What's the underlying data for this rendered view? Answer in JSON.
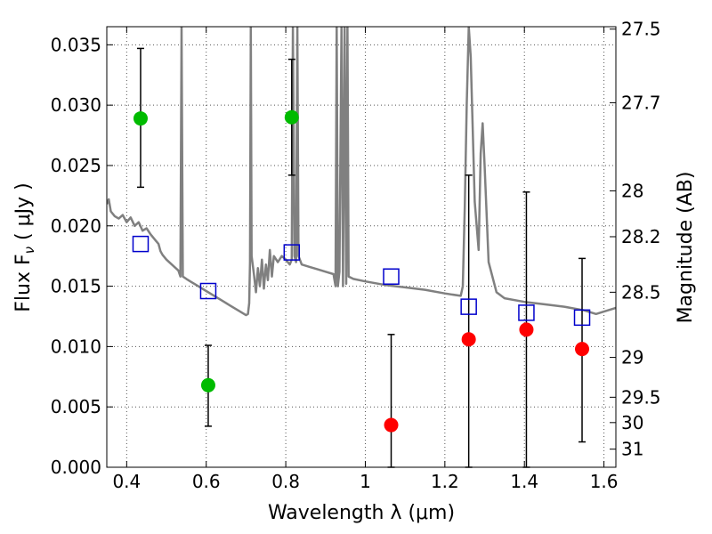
{
  "chart_data": {
    "type": "scatter",
    "xlabel": "Wavelength  λ (μm)",
    "ylabel": "Flux  F",
    "ylabel_sub": "ν",
    "ylabel_unit": "  ( μJy )",
    "ylabel_right": "Magnitude (AB)",
    "xlim": [
      0.35,
      1.63
    ],
    "ylim": [
      0.0,
      0.0365
    ],
    "grid": true,
    "x_ticks": [
      0.4,
      0.6,
      0.8,
      1.0,
      1.2,
      1.4,
      1.6
    ],
    "x_tick_labels": [
      "0.4",
      "0.6",
      "0.8",
      "1",
      "1.2",
      "1.4",
      "1.6"
    ],
    "y_ticks": [
      0.0,
      0.005,
      0.01,
      0.015,
      0.02,
      0.025,
      0.03,
      0.035
    ],
    "y_tick_labels": [
      "0.000",
      "0.005",
      "0.010",
      "0.015",
      "0.020",
      "0.025",
      "0.030",
      "0.035"
    ],
    "mag_ticks": [
      {
        "label": "27.5",
        "flux": 0.0363
      },
      {
        "label": "27.7",
        "flux": 0.0302
      },
      {
        "label": "28",
        "flux": 0.0229
      },
      {
        "label": "28.2",
        "flux": 0.0191
      },
      {
        "label": "28.5",
        "flux": 0.0145
      },
      {
        "label": "29",
        "flux": 0.0091
      },
      {
        "label": "29.5",
        "flux": 0.0058
      },
      {
        "label": "30",
        "flux": 0.0037
      },
      {
        "label": "31",
        "flux": 0.0015
      }
    ],
    "colors": {
      "axes": "#000000",
      "grid": "#555555",
      "model": "#808080",
      "green": "#00bb00",
      "red": "#ff0000",
      "square": "#0000cc",
      "errorbar": "#000000"
    },
    "model_spectrum": [
      [
        0.35,
        0.0218
      ],
      [
        0.355,
        0.0222
      ],
      [
        0.36,
        0.0212
      ],
      [
        0.37,
        0.0208
      ],
      [
        0.38,
        0.0206
      ],
      [
        0.39,
        0.0209
      ],
      [
        0.4,
        0.0203
      ],
      [
        0.41,
        0.0207
      ],
      [
        0.42,
        0.02
      ],
      [
        0.43,
        0.0203
      ],
      [
        0.44,
        0.0196
      ],
      [
        0.45,
        0.0198
      ],
      [
        0.46,
        0.0193
      ],
      [
        0.47,
        0.0189
      ],
      [
        0.48,
        0.0185
      ],
      [
        0.485,
        0.0179
      ],
      [
        0.49,
        0.0176
      ],
      [
        0.5,
        0.0172
      ],
      [
        0.51,
        0.0169
      ],
      [
        0.52,
        0.0166
      ],
      [
        0.53,
        0.0163
      ],
      [
        0.535,
        0.0158
      ],
      [
        0.538,
        0.0365
      ],
      [
        0.541,
        0.0158
      ],
      [
        0.55,
        0.0156
      ],
      [
        0.56,
        0.0154
      ],
      [
        0.58,
        0.015
      ],
      [
        0.6,
        0.0146
      ],
      [
        0.62,
        0.0142
      ],
      [
        0.64,
        0.0138
      ],
      [
        0.66,
        0.0134
      ],
      [
        0.68,
        0.013
      ],
      [
        0.7,
        0.0126
      ],
      [
        0.705,
        0.0127
      ],
      [
        0.708,
        0.0136
      ],
      [
        0.71,
        0.017
      ],
      [
        0.712,
        0.0365
      ],
      [
        0.714,
        0.0175
      ],
      [
        0.72,
        0.016
      ],
      [
        0.725,
        0.0145
      ],
      [
        0.73,
        0.0165
      ],
      [
        0.735,
        0.015
      ],
      [
        0.74,
        0.0172
      ],
      [
        0.745,
        0.0148
      ],
      [
        0.75,
        0.0168
      ],
      [
        0.755,
        0.0155
      ],
      [
        0.76,
        0.018
      ],
      [
        0.765,
        0.0158
      ],
      [
        0.77,
        0.0175
      ],
      [
        0.78,
        0.017
      ],
      [
        0.79,
        0.0175
      ],
      [
        0.8,
        0.0172
      ],
      [
        0.81,
        0.0168
      ],
      [
        0.815,
        0.0172
      ],
      [
        0.818,
        0.0365
      ],
      [
        0.822,
        0.0175
      ],
      [
        0.826,
        0.017
      ],
      [
        0.829,
        0.0365
      ],
      [
        0.832,
        0.0175
      ],
      [
        0.84,
        0.0168
      ],
      [
        0.86,
        0.0166
      ],
      [
        0.88,
        0.0164
      ],
      [
        0.9,
        0.0162
      ],
      [
        0.92,
        0.016
      ],
      [
        0.925,
        0.015
      ],
      [
        0.928,
        0.0365
      ],
      [
        0.931,
        0.015
      ],
      [
        0.935,
        0.0162
      ],
      [
        0.94,
        0.0365
      ],
      [
        0.944,
        0.015
      ],
      [
        0.948,
        0.0365
      ],
      [
        0.952,
        0.0152
      ],
      [
        0.955,
        0.0365
      ],
      [
        0.958,
        0.0158
      ],
      [
        0.97,
        0.0156
      ],
      [
        1.0,
        0.0154
      ],
      [
        1.05,
        0.0151
      ],
      [
        1.1,
        0.0149
      ],
      [
        1.15,
        0.0147
      ],
      [
        1.2,
        0.0144
      ],
      [
        1.24,
        0.0142
      ],
      [
        1.245,
        0.015
      ],
      [
        1.25,
        0.0215
      ],
      [
        1.255,
        0.03
      ],
      [
        1.26,
        0.0365
      ],
      [
        1.265,
        0.034
      ],
      [
        1.275,
        0.022
      ],
      [
        1.285,
        0.018
      ],
      [
        1.29,
        0.026
      ],
      [
        1.295,
        0.0285
      ],
      [
        1.3,
        0.025
      ],
      [
        1.31,
        0.017
      ],
      [
        1.33,
        0.0145
      ],
      [
        1.35,
        0.014
      ],
      [
        1.4,
        0.0137
      ],
      [
        1.45,
        0.0135
      ],
      [
        1.5,
        0.0133
      ],
      [
        1.55,
        0.013
      ],
      [
        1.58,
        0.0127
      ],
      [
        1.6,
        0.0129
      ],
      [
        1.63,
        0.0132
      ]
    ],
    "series": [
      {
        "marker": "circle",
        "color": "green",
        "points": [
          {
            "x": 0.435,
            "y": 0.0289,
            "ylow": 0.0232,
            "yhigh": 0.0347
          },
          {
            "x": 0.605,
            "y": 0.0068,
            "ylow": 0.0034,
            "yhigh": 0.0101
          },
          {
            "x": 0.815,
            "y": 0.029,
            "ylow": 0.0242,
            "yhigh": 0.0338
          }
        ]
      },
      {
        "marker": "circle",
        "color": "red",
        "points": [
          {
            "x": 1.065,
            "y": 0.0035,
            "ylow": 0.0,
            "yhigh": 0.011
          },
          {
            "x": 1.26,
            "y": 0.0106,
            "ylow": 0.0,
            "yhigh": 0.0242
          },
          {
            "x": 1.405,
            "y": 0.0114,
            "ylow": 0.0,
            "yhigh": 0.0228
          },
          {
            "x": 1.545,
            "y": 0.0098,
            "ylow": 0.0021,
            "yhigh": 0.0173
          }
        ]
      },
      {
        "marker": "square",
        "color": "square",
        "points": [
          {
            "x": 0.435,
            "y": 0.0185
          },
          {
            "x": 0.605,
            "y": 0.0146
          },
          {
            "x": 0.815,
            "y": 0.0178
          },
          {
            "x": 1.065,
            "y": 0.0158
          },
          {
            "x": 1.26,
            "y": 0.0133
          },
          {
            "x": 1.405,
            "y": 0.0128
          },
          {
            "x": 1.545,
            "y": 0.0124
          }
        ]
      }
    ]
  }
}
